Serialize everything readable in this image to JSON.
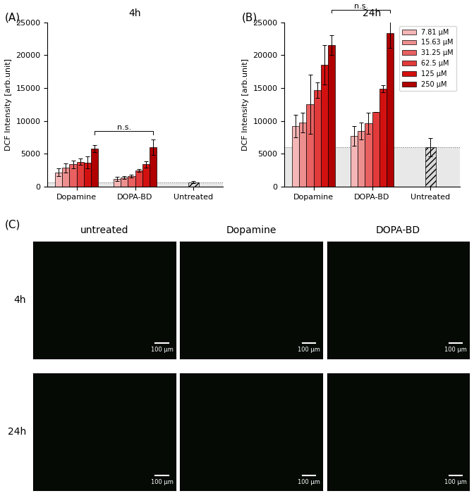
{
  "chart_data": [
    {
      "type": "bar",
      "panel": "(A)",
      "title": "4h",
      "y_label": "DCF Intensity [arb.unit]",
      "categories": [
        "Dopamine",
        "DOPA-BD",
        "Untreated"
      ],
      "ylim": [
        0,
        25000
      ],
      "yticks": [
        0,
        5000,
        10000,
        15000,
        20000,
        25000
      ],
      "series": [
        {
          "name": "7.81 µM",
          "color": "#f4b6b6",
          "values": [
            2200,
            1200,
            null
          ],
          "errors": [
            600,
            300,
            null
          ]
        },
        {
          "name": "15.63 µM",
          "color": "#ee8f8f",
          "values": [
            2900,
            1400,
            null
          ],
          "errors": [
            700,
            200,
            null
          ]
        },
        {
          "name": "31.25 µM",
          "color": "#e86060",
          "values": [
            3400,
            1600,
            null
          ],
          "errors": [
            600,
            200,
            null
          ]
        },
        {
          "name": "62.5 µM",
          "color": "#e23a3a",
          "values": [
            3800,
            2500,
            null
          ],
          "errors": [
            500,
            200,
            null
          ]
        },
        {
          "name": "125 µM",
          "color": "#d31010",
          "values": [
            3700,
            3400,
            null
          ],
          "errors": [
            900,
            500,
            null
          ]
        },
        {
          "name": "250 µM",
          "color": "#b00000",
          "values": [
            5800,
            6000,
            null
          ],
          "errors": [
            500,
            1200,
            null
          ]
        }
      ],
      "control": {
        "category": "Untreated",
        "value": 700,
        "error": 200,
        "color": "#d9d9d9"
      },
      "significance": {
        "text": "n.s.",
        "from": "Dopamine",
        "to": "DOPA-BD",
        "series": "250 µM"
      }
    },
    {
      "type": "bar",
      "panel": "(B)",
      "title": "24h",
      "y_label": "DCF Intensity [arb.unit]",
      "categories": [
        "Dopamine",
        "DOPA-BD",
        "Untreated"
      ],
      "ylim": [
        0,
        25000
      ],
      "yticks": [
        0,
        5000,
        10000,
        15000,
        20000,
        25000
      ],
      "legend": "upper right",
      "series": [
        {
          "name": "7.81 µM",
          "color": "#f4b6b6",
          "values": [
            9200,
            7700,
            null
          ],
          "errors": [
            1700,
            1500,
            null
          ]
        },
        {
          "name": "15.63 µM",
          "color": "#ee8f8f",
          "values": [
            9800,
            8500,
            null
          ],
          "errors": [
            1500,
            1300,
            null
          ]
        },
        {
          "name": "31.25 µM",
          "color": "#e86060",
          "values": [
            12500,
            9700,
            null
          ],
          "errors": [
            4500,
            1600,
            null
          ]
        },
        {
          "name": "62.5 µM",
          "color": "#e23a3a",
          "values": [
            14700,
            11400,
            null
          ],
          "errors": [
            1200,
            0,
            null
          ]
        },
        {
          "name": "125 µM",
          "color": "#d31010",
          "values": [
            18600,
            14900,
            null
          ],
          "errors": [
            3000,
            500,
            null
          ]
        },
        {
          "name": "250 µM",
          "color": "#b00000",
          "values": [
            21500,
            23400,
            null
          ],
          "errors": [
            1500,
            2300,
            null
          ]
        }
      ],
      "control": {
        "category": "Untreated",
        "value": 6000,
        "error": 1400,
        "color": "#d9d9d9"
      },
      "significance": {
        "text": "n.s.",
        "from": "Dopamine",
        "to": "DOPA-BD",
        "series": "250 µM"
      }
    }
  ],
  "panel_c": {
    "label": "(C)",
    "columns": [
      "untreated",
      "Dopamine",
      "DOPA-BD"
    ],
    "rows": [
      "4h",
      "24h"
    ],
    "scale_bar": "100 µm"
  }
}
